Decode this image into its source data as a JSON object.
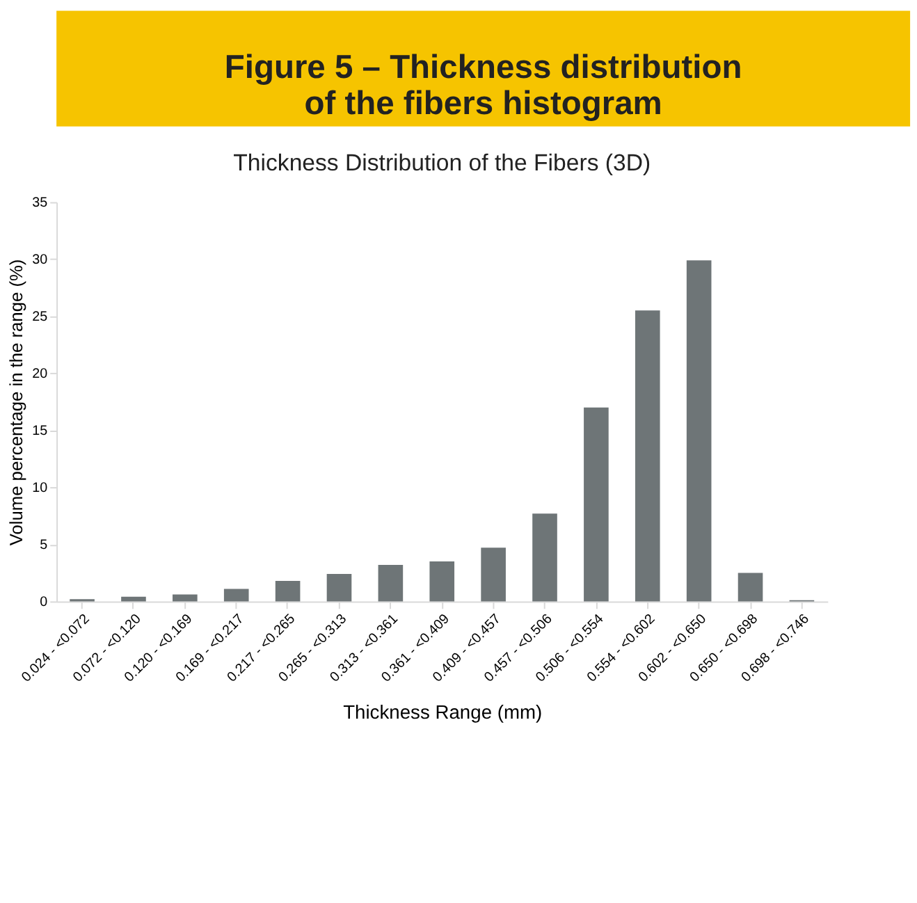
{
  "chart_data": {
    "type": "bar",
    "title": "Figure 5 – Thickness distribution\nof the fibers histogram",
    "subtitle": "Thickness Distribution of the Fibers (3D)",
    "xlabel": "Thickness Range (mm)",
    "ylabel": "Volume percentage in the range (%)",
    "categories": [
      "0.024 - <0.072",
      "0.072 - <0.120",
      "0.120 - <0.169",
      "0.169 - <0.217",
      "0.217 - <0.265",
      "0.265 - <0.313",
      "0.313 - <0.361",
      "0.361 - <0.409",
      "0.409 - <0.457",
      "0.457 - <0.506",
      "0.506 - <0.554",
      "0.554 - <0.602",
      "0.602 - <0.650",
      "0.650 - <0.698",
      "0.698 - <0.746"
    ],
    "values": [
      0.2,
      0.4,
      0.6,
      1.1,
      1.8,
      2.4,
      3.2,
      3.5,
      4.7,
      7.7,
      17.0,
      25.5,
      29.9,
      2.5,
      0.1
    ],
    "color": "#6e7577",
    "ylim": [
      0,
      35
    ],
    "yticks": [
      0,
      5,
      10,
      15,
      20,
      25,
      30,
      35
    ],
    "grid": false
  }
}
